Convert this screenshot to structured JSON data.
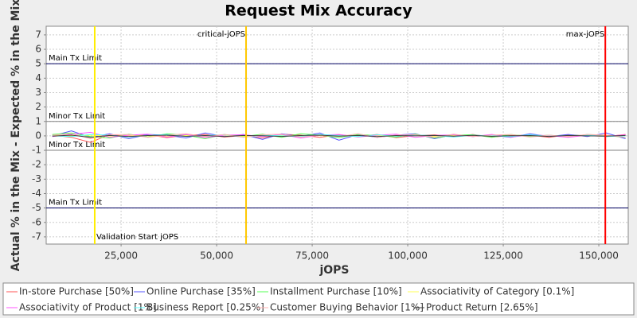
{
  "chart_data": {
    "type": "line",
    "title": "Request Mix Accuracy",
    "x_label": "jOPS",
    "y_label": "Actual % in the Mix - Expected % in the Mix",
    "xlim": [
      5400,
      157700
    ],
    "ylim": [
      -7.5,
      7.6
    ],
    "xticks": [
      {
        "value": 25000,
        "label": "25,000"
      },
      {
        "value": 50000,
        "label": "50,000"
      },
      {
        "value": 75000,
        "label": "75,000"
      },
      {
        "value": 100000,
        "label": "100,000"
      },
      {
        "value": 125000,
        "label": "125,000"
      },
      {
        "value": 150000,
        "label": "150,000"
      }
    ],
    "yticks": [
      -7,
      -6,
      -5,
      -4,
      -3,
      -2,
      -1,
      0,
      1,
      2,
      3,
      4,
      5,
      6,
      7
    ],
    "grid": true,
    "hlines": [
      {
        "value": 5,
        "label": "Main Tx Limit",
        "color": "#000060"
      },
      {
        "value": 1,
        "label": "Minor Tx Limit",
        "color": "#808080"
      },
      {
        "value": -1,
        "label": "Minor Tx Limit",
        "color": "#808080"
      },
      {
        "value": -5,
        "label": "Main Tx Limit",
        "color": "#000060"
      }
    ],
    "vlines": [
      {
        "value": 18100,
        "label": "Validation Start jOPS",
        "color": "#ffee00"
      },
      {
        "value": 57700,
        "label": "critical-jOPS",
        "color": "#ffc800"
      },
      {
        "value": 151700,
        "label": "max-jOPS",
        "color": "#ff0000"
      }
    ],
    "x": [
      7000,
      12000,
      17000,
      22000,
      27000,
      32000,
      37000,
      42000,
      47000,
      52000,
      57000,
      62000,
      67000,
      72000,
      77000,
      82000,
      87000,
      92000,
      97000,
      102000,
      107000,
      112000,
      117000,
      122000,
      127000,
      132000,
      137000,
      142000,
      147000,
      152000,
      157000
    ],
    "series": [
      {
        "name": "In-store Purchase [50%]",
        "color": "#ff5555",
        "values": [
          0.05,
          -0.1,
          -0.45,
          0.1,
          -0.05,
          0.08,
          -0.12,
          0.05,
          0.1,
          -0.08,
          0.02,
          -0.15,
          0.12,
          0.05,
          -0.1,
          0.08,
          -0.05,
          0.1,
          -0.12,
          0.03,
          0.07,
          -0.05,
          0.1,
          -0.08,
          0.02,
          0.05,
          -0.1,
          0.08,
          0.03,
          -0.05,
          0.1
        ]
      },
      {
        "name": "Online Purchase [35%]",
        "color": "#5555ff",
        "values": [
          0,
          0.35,
          -0.1,
          0.15,
          -0.2,
          0.1,
          0.05,
          -0.15,
          0.2,
          -0.05,
          0.1,
          -0.25,
          0.15,
          -0.05,
          0.2,
          -0.3,
          0.1,
          -0.1,
          0.05,
          0.15,
          -0.2,
          0.1,
          -0.05,
          0.05,
          -0.1,
          0.15,
          -0.05,
          0.1,
          -0.05,
          0.2,
          -0.2
        ]
      },
      {
        "name": "Installment Purchase [10%]",
        "color": "#55ff55",
        "values": [
          0.1,
          0.2,
          -0.05,
          -0.15,
          0.12,
          -0.08,
          0.15,
          0.05,
          -0.2,
          0.1,
          -0.05,
          0.12,
          -0.1,
          0.15,
          0.05,
          -0.12,
          0.1,
          0.02,
          -0.08,
          0.12,
          -0.15,
          0.05,
          0.08,
          -0.1,
          0.1,
          -0.05,
          0.05,
          -0.08,
          0.1,
          0.02,
          -0.1
        ]
      },
      {
        "name": "Associativity of Category [0.1%]",
        "color": "#ffff55",
        "values": [
          0.02,
          0,
          0.05,
          -0.02,
          0.03,
          0,
          -0.03,
          0.02,
          0,
          0.04,
          -0.02,
          0,
          0.03,
          -0.01,
          0.02,
          0,
          -0.02,
          0.03,
          0,
          0.01,
          -0.03,
          0.02,
          0,
          0.01,
          -0.02,
          0.03,
          0,
          -0.01,
          0.02,
          0,
          0.01
        ]
      },
      {
        "name": "Associativity of Product [1%]",
        "color": "#ff55ff",
        "values": [
          -0.05,
          0.1,
          0.25,
          -0.1,
          0.05,
          0.12,
          -0.08,
          0.1,
          -0.12,
          0.05,
          0.08,
          -0.05,
          0.1,
          -0.15,
          0.05,
          0.1,
          -0.08,
          0.05,
          0.12,
          -0.1,
          0.03,
          0.08,
          -0.05,
          0.1,
          -0.08,
          0.05,
          0.02,
          -0.1,
          0.05,
          -0.03,
          0.08
        ]
      },
      {
        "name": "Business Report [0.25%]",
        "color": "#55ffff",
        "values": [
          0,
          -0.05,
          0.1,
          0.05,
          -0.08,
          0.03,
          0.1,
          -0.05,
          0.02,
          0.08,
          -0.1,
          0.05,
          0,
          -0.05,
          0.1,
          0.02,
          -0.05,
          0.08,
          -0.02,
          0.05,
          0.03,
          -0.08,
          0.05,
          0,
          -0.05,
          0.08,
          -0.02,
          0.03,
          0.05,
          -0.05,
          0
        ]
      },
      {
        "name": "Customer Buying Behavior [1%]",
        "color": "#ffafaf",
        "values": [
          0.05,
          0.15,
          -0.2,
          0.08,
          0.1,
          -0.1,
          0.05,
          0.15,
          -0.05,
          0.1,
          -0.1,
          0.08,
          0.12,
          -0.08,
          0.05,
          -0.05,
          0.15,
          -0.1,
          0.05,
          0.08,
          -0.1,
          0.12,
          -0.05,
          0.05,
          0.1,
          -0.08,
          0.05,
          -0.05,
          0.1,
          0.05,
          -0.1
        ]
      },
      {
        "name": "Product Return [2.65%]",
        "color": "#404040",
        "values": [
          -0.02,
          0.05,
          -0.1,
          0.03,
          -0.05,
          0.02,
          0.05,
          -0.03,
          0.02,
          -0.05,
          0.03,
          0.01,
          -0.04,
          0.02,
          0.05,
          -0.02,
          0.03,
          -0.05,
          0.02,
          0,
          0.03,
          -0.02,
          0.04,
          -0.03,
          0.01,
          0.02,
          -0.04,
          0.03,
          0,
          -0.02,
          0.03
        ]
      }
    ]
  }
}
